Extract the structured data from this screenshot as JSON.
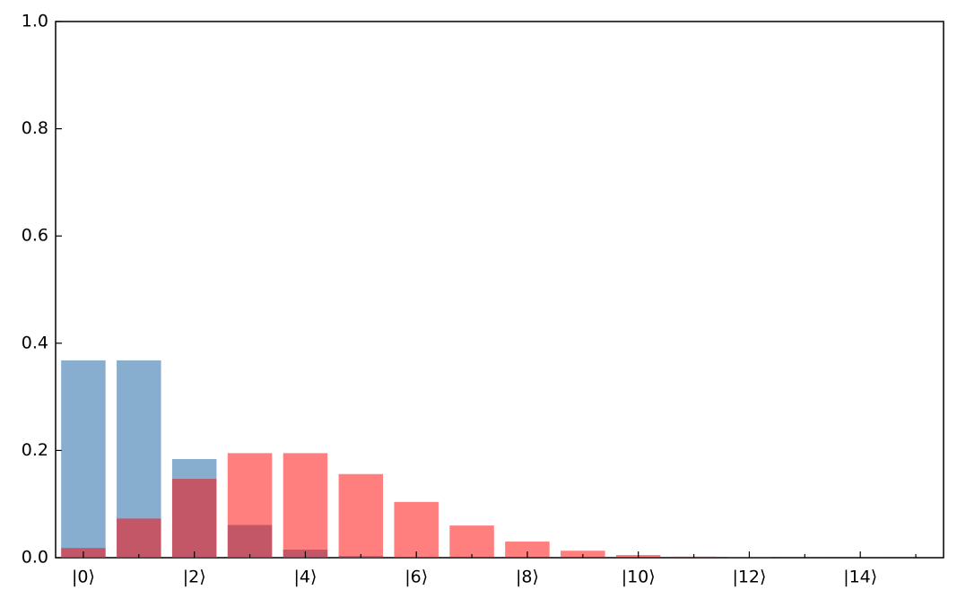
{
  "chart_data": {
    "type": "bar",
    "categories": [
      "|0⟩",
      null,
      "|2⟩",
      null,
      "|4⟩",
      null,
      "|6⟩",
      null,
      "|8⟩",
      null,
      "|10⟩",
      null,
      "|12⟩",
      null,
      "|14⟩",
      null
    ],
    "series": [
      {
        "color": "#4682b4",
        "opacity": 0.65,
        "values": [
          0.368,
          0.368,
          0.184,
          0.061,
          0.015,
          0.003,
          0.0005,
          0.0001,
          0,
          0,
          0,
          0,
          0,
          0,
          0,
          0
        ]
      },
      {
        "color": "#ff0000",
        "opacity": 0.5,
        "values": [
          0.018,
          0.073,
          0.147,
          0.195,
          0.195,
          0.156,
          0.104,
          0.06,
          0.03,
          0.013,
          0.005,
          0.002,
          0.0006,
          0.0002,
          0.0001,
          0
        ]
      }
    ],
    "xlim": [
      -0.5,
      15.5
    ],
    "ylim": [
      0,
      1
    ],
    "yticks": [
      {
        "value": 0,
        "label": "0.0"
      },
      0.2,
      0.4,
      0.6,
      0.8,
      {
        "value": 1,
        "label": "1.0"
      }
    ],
    "grid": false
  }
}
